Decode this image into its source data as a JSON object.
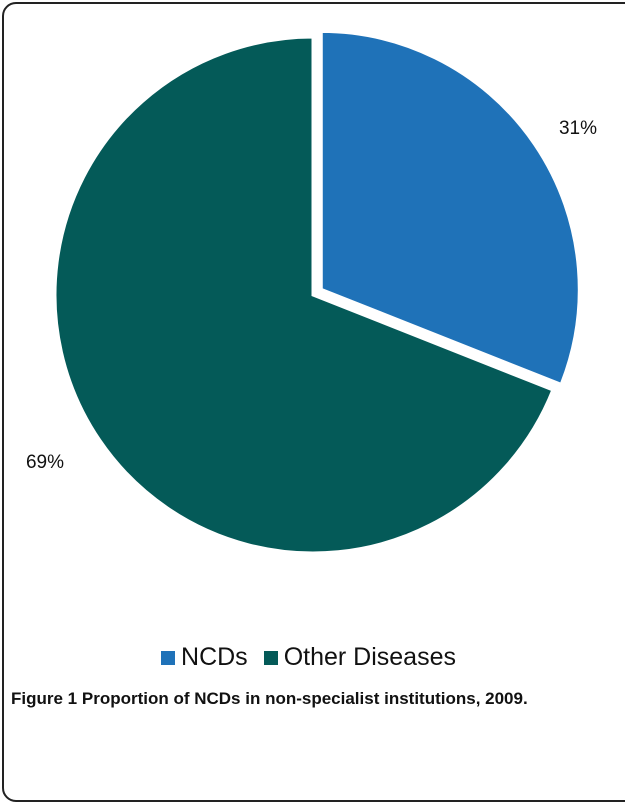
{
  "chart_data": {
    "type": "pie",
    "categories": [
      "NCDs",
      "Other Diseases"
    ],
    "values": [
      31,
      69
    ],
    "data_labels": [
      "31%",
      "69%"
    ],
    "colors": [
      "#1f72b8",
      "#045a58"
    ],
    "legend_position": "bottom",
    "exploded": "NCDs"
  },
  "legend": {
    "items": [
      {
        "label": "NCDs",
        "color": "#1f72b8"
      },
      {
        "label": "Other Diseases",
        "color": "#045a58"
      }
    ]
  },
  "caption": {
    "number": "Figure 1",
    "text": "Proportion of NCDs in non-specialist institutions, 2009."
  }
}
